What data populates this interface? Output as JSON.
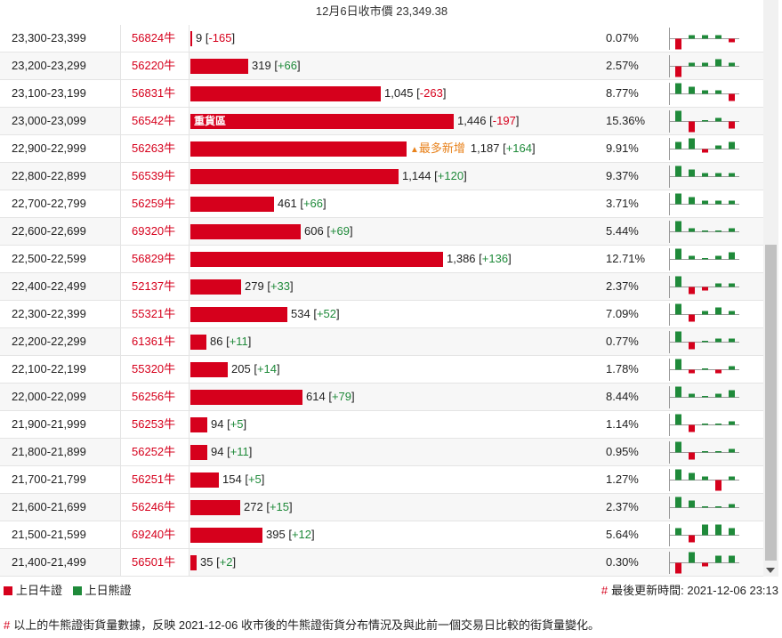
{
  "header": {
    "title": "12月6日收市價 23,349.38"
  },
  "colors": {
    "bull": "#d6001c",
    "bear": "#1f8a3a",
    "new_tag": "#e8821c"
  },
  "max_count": 1446,
  "rows": [
    {
      "range": "23,300-23,399",
      "code": "56824牛",
      "count": "9",
      "change": "-165",
      "pct": "0.07%",
      "value": 9,
      "spark": [
        -3,
        1,
        1,
        1,
        -1
      ]
    },
    {
      "range": "23,200-23,299",
      "code": "56220牛",
      "count": "319",
      "change": "+66",
      "pct": "2.57%",
      "value": 319,
      "spark": [
        -3,
        1,
        1,
        2,
        1
      ]
    },
    {
      "range": "23,100-23,199",
      "code": "56831牛",
      "count": "1,045",
      "change": "-263",
      "pct": "8.77%",
      "value": 1045,
      "spark": [
        3,
        2,
        1,
        1,
        -2
      ]
    },
    {
      "range": "23,000-23,099",
      "code": "56542牛",
      "count": "1,446",
      "change": "-197",
      "pct": "15.36%",
      "value": 1446,
      "label": "重貨區",
      "spark": [
        3,
        -3,
        0,
        1,
        -2
      ]
    },
    {
      "range": "22,900-22,999",
      "code": "56263牛",
      "count": "1,187",
      "change": "+164",
      "pct": "9.91%",
      "value": 1187,
      "new_tag": "最多新增",
      "spark": [
        2,
        3,
        -1,
        1,
        2
      ]
    },
    {
      "range": "22,800-22,899",
      "code": "56539牛",
      "count": "1,144",
      "change": "+120",
      "pct": "9.37%",
      "value": 1144,
      "spark": [
        3,
        2,
        1,
        1,
        1
      ]
    },
    {
      "range": "22,700-22,799",
      "code": "56259牛",
      "count": "461",
      "change": "+66",
      "pct": "3.71%",
      "value": 461,
      "spark": [
        3,
        2,
        1,
        1,
        1
      ]
    },
    {
      "range": "22,600-22,699",
      "code": "69320牛",
      "count": "606",
      "change": "+69",
      "pct": "5.44%",
      "value": 606,
      "spark": [
        3,
        1,
        0,
        0,
        1
      ]
    },
    {
      "range": "22,500-22,599",
      "code": "56829牛",
      "count": "1,386",
      "change": "+136",
      "pct": "12.71%",
      "value": 1386,
      "spark": [
        3,
        1,
        0,
        1,
        2
      ]
    },
    {
      "range": "22,400-22,499",
      "code": "52137牛",
      "count": "279",
      "change": "+33",
      "pct": "2.37%",
      "value": 279,
      "spark": [
        3,
        -2,
        -1,
        1,
        1
      ]
    },
    {
      "range": "22,300-22,399",
      "code": "55321牛",
      "count": "534",
      "change": "+52",
      "pct": "7.09%",
      "value": 534,
      "spark": [
        3,
        -2,
        1,
        2,
        1
      ]
    },
    {
      "range": "22,200-22,299",
      "code": "61361牛",
      "count": "86",
      "change": "+11",
      "pct": "0.77%",
      "value": 86,
      "spark": [
        3,
        -2,
        0,
        1,
        1
      ]
    },
    {
      "range": "22,100-22,199",
      "code": "55320牛",
      "count": "205",
      "change": "+14",
      "pct": "1.78%",
      "value": 205,
      "spark": [
        3,
        -1,
        0,
        -1,
        1
      ]
    },
    {
      "range": "22,000-22,099",
      "code": "56256牛",
      "count": "614",
      "change": "+79",
      "pct": "8.44%",
      "value": 614,
      "spark": [
        3,
        1,
        0,
        1,
        2
      ]
    },
    {
      "range": "21,900-21,999",
      "code": "56253牛",
      "count": "94",
      "change": "+5",
      "pct": "1.14%",
      "value": 94,
      "spark": [
        3,
        -2,
        0,
        0,
        1
      ]
    },
    {
      "range": "21,800-21,899",
      "code": "56252牛",
      "count": "94",
      "change": "+11",
      "pct": "0.95%",
      "value": 94,
      "spark": [
        3,
        -2,
        0,
        0,
        1
      ]
    },
    {
      "range": "21,700-21,799",
      "code": "56251牛",
      "count": "154",
      "change": "+5",
      "pct": "1.27%",
      "value": 154,
      "spark": [
        3,
        2,
        1,
        -3,
        1
      ]
    },
    {
      "range": "21,600-21,699",
      "code": "56246牛",
      "count": "272",
      "change": "+15",
      "pct": "2.37%",
      "value": 272,
      "spark": [
        3,
        2,
        0,
        0,
        1
      ]
    },
    {
      "range": "21,500-21,599",
      "code": "69240牛",
      "count": "395",
      "change": "+12",
      "pct": "5.64%",
      "value": 395,
      "spark": [
        2,
        -2,
        3,
        3,
        2
      ]
    },
    {
      "range": "21,400-21,499",
      "code": "56501牛",
      "count": "35",
      "change": "+2",
      "pct": "0.30%",
      "value": 35,
      "spark": [
        -3,
        3,
        -1,
        2,
        2
      ]
    }
  ],
  "legend": {
    "bull_label": "上日牛證",
    "bear_label": "上日熊證"
  },
  "updated": {
    "hash": "#",
    "text": "最後更新時間: 2021-12-06 23:13"
  },
  "note": {
    "hash": "#",
    "text": "以上的牛熊證街貨量數據，反映 2021-12-06 收市後的牛熊證街貨分布情況及與此前一個交易日比較的街貨量變化。"
  }
}
